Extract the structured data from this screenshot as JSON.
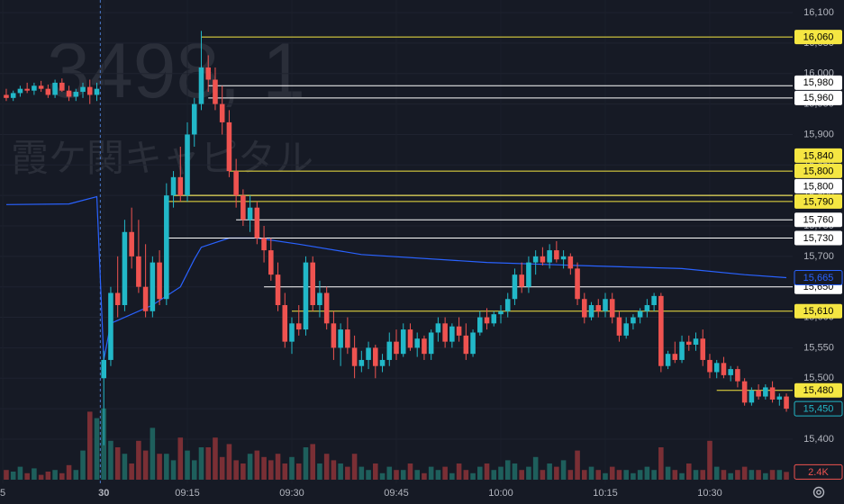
{
  "chart_data": {
    "type": "candlestick",
    "watermark": "3498, 1",
    "watermark_name": "霞ケ関キャピタル",
    "up_color": "#22b8c8",
    "down_color": "#ef5350",
    "volume_up_color": "#1e5f5c",
    "volume_down_color": "#7a2f35",
    "xlim": [
      -14.9,
      98.9
    ],
    "ylim": [
      15380,
      16120
    ],
    "xticks": [
      {
        "value": -14.5,
        "label": "5"
      },
      {
        "value": 0,
        "label": "30"
      },
      {
        "value": 12,
        "label": "09:15"
      },
      {
        "value": 27,
        "label": "09:30"
      },
      {
        "value": 42,
        "label": "09:45"
      },
      {
        "value": 57,
        "label": "10:00"
      },
      {
        "value": 72,
        "label": "10:15"
      },
      {
        "value": 87,
        "label": "10:30"
      }
    ],
    "yticks": [
      {
        "value": 15400,
        "label": "15,400"
      },
      {
        "value": 15450,
        "label": "15,450"
      },
      {
        "value": 15500,
        "label": "15,500"
      },
      {
        "value": 15550,
        "label": "15,550"
      },
      {
        "value": 15600,
        "label": "15,600"
      },
      {
        "value": 15650,
        "label": "15,650"
      },
      {
        "value": 15700,
        "label": "15,700"
      },
      {
        "value": 15750,
        "label": "15,750"
      },
      {
        "value": 15800,
        "label": "15,800"
      },
      {
        "value": 15850,
        "label": "15,850"
      },
      {
        "value": 15900,
        "label": "15,900"
      },
      {
        "value": 15950,
        "label": "15,950"
      },
      {
        "value": 16000,
        "label": "16,000"
      },
      {
        "value": 16050,
        "label": "16,050"
      },
      {
        "value": 16100,
        "label": "16,100"
      }
    ],
    "grid": true,
    "x": [
      -14,
      -13,
      -12,
      -11,
      -10,
      -9,
      -8,
      -7,
      -6,
      -5,
      -4,
      -3,
      -2,
      -1,
      0,
      1,
      2,
      3,
      4,
      5,
      6,
      7,
      8,
      9,
      10,
      11,
      12,
      13,
      14,
      15,
      16,
      17,
      18,
      19,
      20,
      21,
      22,
      23,
      24,
      25,
      26,
      27,
      28,
      29,
      30,
      31,
      32,
      33,
      34,
      35,
      36,
      37,
      38,
      39,
      40,
      41,
      42,
      43,
      44,
      45,
      46,
      47,
      48,
      49,
      50,
      51,
      52,
      53,
      54,
      55,
      56,
      57,
      58,
      59,
      60,
      61,
      62,
      63,
      64,
      65,
      66,
      67,
      68,
      69,
      70,
      71,
      72,
      73,
      74,
      75,
      76,
      77,
      78,
      79,
      80,
      81,
      82,
      83,
      84,
      85,
      86,
      87,
      88,
      89,
      90,
      91,
      92,
      93,
      94,
      95,
      96,
      97,
      98
    ],
    "ohlc": [
      [
        15965,
        15975,
        15955,
        15960
      ],
      [
        15960,
        15972,
        15955,
        15968
      ],
      [
        15968,
        15980,
        15962,
        15975
      ],
      [
        15975,
        15985,
        15968,
        15972
      ],
      [
        15972,
        15985,
        15965,
        15980
      ],
      [
        15980,
        15988,
        15970,
        15975
      ],
      [
        15975,
        15982,
        15960,
        15965
      ],
      [
        15965,
        15990,
        15960,
        15985
      ],
      [
        15985,
        15992,
        15970,
        15972
      ],
      [
        15972,
        15980,
        15955,
        15962
      ],
      [
        15962,
        15975,
        15955,
        15970
      ],
      [
        15970,
        15985,
        15960,
        15978
      ],
      [
        15978,
        15990,
        15950,
        15965
      ],
      [
        15965,
        15985,
        15955,
        15975
      ],
      [
        15500,
        15545,
        15390,
        15530
      ],
      [
        15530,
        15650,
        15520,
        15640
      ],
      [
        15640,
        15700,
        15600,
        15620
      ],
      [
        15620,
        15760,
        15610,
        15740
      ],
      [
        15740,
        15780,
        15680,
        15700
      ],
      [
        15700,
        15760,
        15640,
        15650
      ],
      [
        15650,
        15720,
        15600,
        15610
      ],
      [
        15610,
        15700,
        15600,
        15690
      ],
      [
        15690,
        15710,
        15620,
        15630
      ],
      [
        15630,
        15820,
        15620,
        15800
      ],
      [
        15800,
        15840,
        15780,
        15830
      ],
      [
        15830,
        15880,
        15790,
        15800
      ],
      [
        15800,
        15920,
        15790,
        15900
      ],
      [
        15900,
        15960,
        15880,
        15950
      ],
      [
        15950,
        16070,
        15940,
        16010
      ],
      [
        16010,
        16030,
        15970,
        15990
      ],
      [
        15990,
        16010,
        15940,
        15950
      ],
      [
        15950,
        15980,
        15900,
        15920
      ],
      [
        15920,
        15940,
        15830,
        15840
      ],
      [
        15840,
        15860,
        15780,
        15800
      ],
      [
        15800,
        15810,
        15750,
        15760
      ],
      [
        15760,
        15800,
        15740,
        15780
      ],
      [
        15780,
        15790,
        15720,
        15730
      ],
      [
        15730,
        15750,
        15690,
        15710
      ],
      [
        15710,
        15730,
        15660,
        15670
      ],
      [
        15670,
        15690,
        15610,
        15620
      ],
      [
        15620,
        15640,
        15550,
        15560
      ],
      [
        15560,
        15600,
        15540,
        15590
      ],
      [
        15590,
        15620,
        15570,
        15580
      ],
      [
        15580,
        15700,
        15570,
        15690
      ],
      [
        15690,
        15700,
        15610,
        15620
      ],
      [
        15620,
        15660,
        15600,
        15640
      ],
      [
        15640,
        15650,
        15580,
        15590
      ],
      [
        15590,
        15610,
        15530,
        15550
      ],
      [
        15550,
        15590,
        15520,
        15580
      ],
      [
        15580,
        15600,
        15540,
        15550
      ],
      [
        15550,
        15570,
        15500,
        15520
      ],
      [
        15520,
        15545,
        15510,
        15530
      ],
      [
        15530,
        15560,
        15515,
        15550
      ],
      [
        15550,
        15555,
        15500,
        15520
      ],
      [
        15520,
        15540,
        15510,
        15530
      ],
      [
        15530,
        15575,
        15520,
        15560
      ],
      [
        15560,
        15580,
        15530,
        15540
      ],
      [
        15540,
        15590,
        15535,
        15580
      ],
      [
        15580,
        15590,
        15545,
        15550
      ],
      [
        15550,
        15575,
        15535,
        15565
      ],
      [
        15565,
        15570,
        15530,
        15540
      ],
      [
        15540,
        15580,
        15530,
        15575
      ],
      [
        15575,
        15600,
        15560,
        15590
      ],
      [
        15590,
        15600,
        15550,
        15560
      ],
      [
        15560,
        15590,
        15550,
        15585
      ],
      [
        15585,
        15600,
        15560,
        15570
      ],
      [
        15570,
        15590,
        15530,
        15540
      ],
      [
        15540,
        15580,
        15535,
        15575
      ],
      [
        15575,
        15610,
        15570,
        15600
      ],
      [
        15600,
        15615,
        15580,
        15590
      ],
      [
        15590,
        15610,
        15585,
        15605
      ],
      [
        15605,
        15620,
        15590,
        15610
      ],
      [
        15610,
        15640,
        15600,
        15630
      ],
      [
        15630,
        15680,
        15620,
        15670
      ],
      [
        15670,
        15690,
        15640,
        15650
      ],
      [
        15650,
        15700,
        15640,
        15690
      ],
      [
        15690,
        15710,
        15670,
        15700
      ],
      [
        15700,
        15715,
        15685,
        15690
      ],
      [
        15690,
        15720,
        15680,
        15710
      ],
      [
        15710,
        15725,
        15690,
        15695
      ],
      [
        15695,
        15710,
        15680,
        15700
      ],
      [
        15700,
        15705,
        15670,
        15680
      ],
      [
        15680,
        15690,
        15620,
        15630
      ],
      [
        15630,
        15640,
        15590,
        15600
      ],
      [
        15600,
        15625,
        15595,
        15620
      ],
      [
        15620,
        15630,
        15600,
        15610
      ],
      [
        15610,
        15640,
        15600,
        15630
      ],
      [
        15630,
        15640,
        15590,
        15600
      ],
      [
        15600,
        15610,
        15560,
        15570
      ],
      [
        15570,
        15600,
        15565,
        15590
      ],
      [
        15590,
        15605,
        15580,
        15600
      ],
      [
        15600,
        15615,
        15590,
        15610
      ],
      [
        15610,
        15630,
        15600,
        15620
      ],
      [
        15620,
        15640,
        15610,
        15635
      ],
      [
        15635,
        15640,
        15510,
        15520
      ],
      [
        15520,
        15545,
        15515,
        15540
      ],
      [
        15540,
        15560,
        15525,
        15530
      ],
      [
        15530,
        15570,
        15525,
        15560
      ],
      [
        15560,
        15570,
        15545,
        15555
      ],
      [
        15555,
        15575,
        15545,
        15565
      ],
      [
        15565,
        15580,
        15520,
        15530
      ],
      [
        15530,
        15540,
        15500,
        15510
      ],
      [
        15510,
        15530,
        15500,
        15525
      ],
      [
        15525,
        15535,
        15500,
        15505
      ],
      [
        15505,
        15520,
        15495,
        15515
      ],
      [
        15515,
        15520,
        15485,
        15495
      ],
      [
        15495,
        15500,
        15455,
        15460
      ],
      [
        15460,
        15485,
        15455,
        15480
      ],
      [
        15480,
        15490,
        15465,
        15470
      ],
      [
        15470,
        15490,
        15465,
        15485
      ],
      [
        15485,
        15495,
        15460,
        15465
      ],
      [
        15465,
        15475,
        15455,
        15470
      ],
      [
        15470,
        15475,
        15445,
        15450
      ]
    ],
    "volume": {
      "vlim": [
        0,
        25000
      ],
      "values": [
        3000,
        2500,
        4000,
        2000,
        3500,
        1500,
        2500,
        3000,
        2000,
        4500,
        3000,
        9000,
        21000,
        19000,
        22000,
        12000,
        10000,
        8000,
        5000,
        12000,
        9000,
        16000,
        8000,
        8000,
        6000,
        13000,
        9000,
        6000,
        10000,
        10000,
        13000,
        7000,
        11000,
        6000,
        5000,
        8000,
        9000,
        7000,
        6000,
        8000,
        5000,
        7000,
        5000,
        10000,
        11000,
        5000,
        8000,
        6000,
        5000,
        4000,
        8000,
        4000,
        3000,
        5000,
        2000,
        4000,
        3000,
        3000,
        5000,
        3000,
        2000,
        4000,
        3000,
        4000,
        2000,
        5000,
        3000,
        2000,
        4000,
        5000,
        3000,
        4000,
        6000,
        5000,
        3000,
        4000,
        7000,
        3000,
        5000,
        4000,
        6000,
        3000,
        9000,
        3000,
        4000,
        3000,
        2000,
        4000,
        3000,
        3000,
        2000,
        3000,
        4000,
        3000,
        10000,
        4000,
        3000,
        2000,
        5000,
        3000,
        3000,
        12000,
        4000,
        3000,
        2000,
        3000,
        4000,
        3000,
        3000,
        2000,
        3000,
        3000,
        2400
      ]
    },
    "volume_label": {
      "value": 2400,
      "label": "2.4K"
    },
    "vwap": {
      "color": "#2962ff",
      "x": [
        -14,
        -5,
        -1,
        0,
        1,
        7,
        11,
        13,
        14,
        18,
        22,
        28,
        37,
        55,
        68,
        83,
        92,
        98
      ],
      "values": [
        15785,
        15786,
        15798,
        15530,
        15590,
        15620,
        15650,
        15695,
        15715,
        15730,
        15730,
        15720,
        15703,
        15690,
        15685,
        15680,
        15670,
        15665
      ]
    },
    "vwap_label": {
      "value": 15665,
      "label": "15,665"
    },
    "last_price": {
      "value": 15450,
      "label": "15,450"
    },
    "levels": [
      {
        "value": 16060,
        "label": "16,060",
        "color": "#f5e642",
        "from": 14
      },
      {
        "value": 15980,
        "label": "15,980",
        "color": "#ffffff",
        "from": 15
      },
      {
        "value": 15960,
        "label": "15,960",
        "color": "#ffffff",
        "from": 15
      },
      {
        "value": 15840,
        "label": "15,840",
        "color": "#f5e642",
        "from": 18
      },
      {
        "value": 15800,
        "label": "15,800",
        "color": "#ffffff",
        "from": 10
      },
      {
        "value": 15800,
        "label": "15,800",
        "color": "#f5e642",
        "from": 10
      },
      {
        "value": 15790,
        "label": "15,790",
        "color": "#f5e642",
        "from": 9
      },
      {
        "value": 15760,
        "label": "15,760",
        "color": "#ffffff",
        "from": 19
      },
      {
        "value": 15730,
        "label": "15,730",
        "color": "#ffffff",
        "from": 9
      },
      {
        "value": 15650,
        "label": "15,650",
        "color": "#ffffff",
        "from": 23
      },
      {
        "value": 15610,
        "label": "15,610",
        "color": "#f5e642",
        "from": 27
      },
      {
        "value": 15480,
        "label": "15,480",
        "color": "#f5e642",
        "from": 88
      }
    ]
  }
}
